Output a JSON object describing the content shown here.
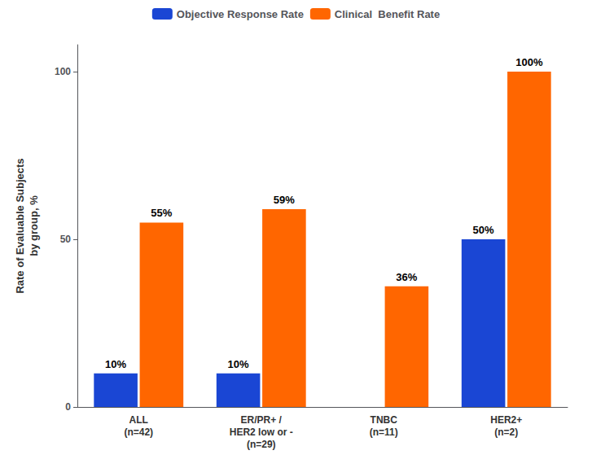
{
  "chart_data": {
    "type": "bar",
    "categories": [
      "ALL\n(n=42)",
      "ER/PR+ /\nHER2 low or -\n(n=29)",
      "TNBC\n(n=11)",
      "HER2+\n(n=2)"
    ],
    "series": [
      {
        "name": "Objective Response Rate",
        "color": "#1a46d4",
        "values": [
          10,
          10,
          0,
          50
        ],
        "value_labels": [
          "10%",
          "10%",
          null,
          "50%"
        ]
      },
      {
        "name": "Clinical  Benefit Rate",
        "color": "#ff6600",
        "values": [
          55,
          59,
          36,
          100
        ],
        "value_labels": [
          "55%",
          "59%",
          "36%",
          "100%"
        ]
      }
    ],
    "ylabel": "Rate of Evaluable Subjects\nby group, %",
    "ylim": [
      0,
      108
    ],
    "yticks": [
      0,
      50,
      100
    ],
    "grid": false,
    "legend": "upper center",
    "data_labels": true
  }
}
